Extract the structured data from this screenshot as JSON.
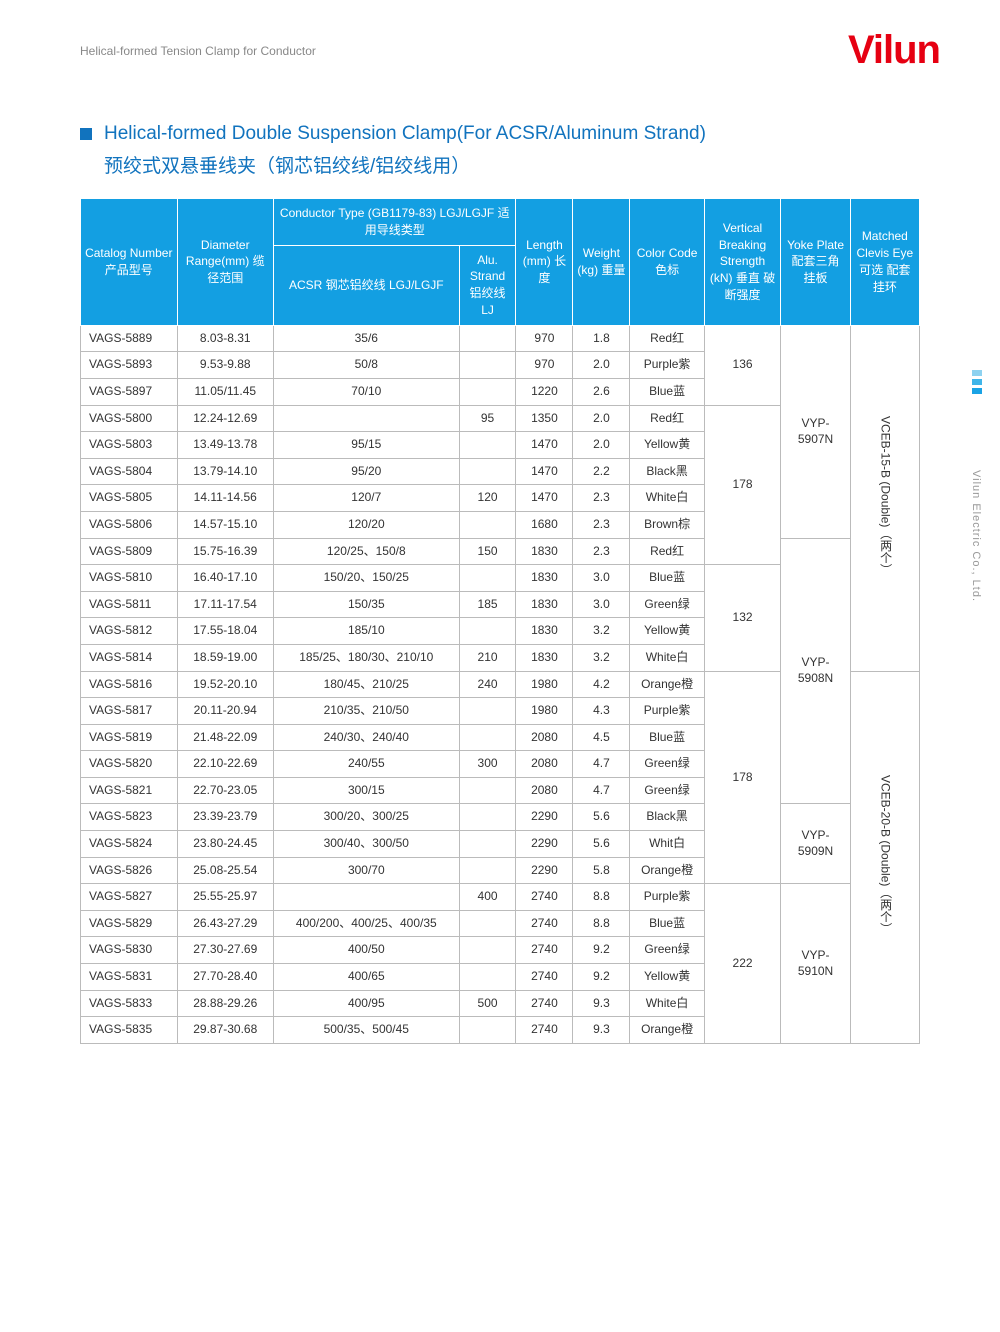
{
  "header": {
    "breadcrumb": "Helical-formed Tension Clamp for Conductor",
    "logo": "Vilun"
  },
  "side_label": "Vilun Electric Co., Ltd.",
  "title_en": "Helical-formed Double Suspension Clamp(For ACSR/Aluminum Strand)",
  "title_cn": "预绞式双悬垂线夹（钢芯铝绞线/铝绞线用）",
  "columns": {
    "catalog": "Catalog Number 产品型号",
    "diameter": "Diameter Range(mm) 缆径范围",
    "conductor_group": "Conductor Type (GB1179-83) LGJ/LGJF 适用导线类型",
    "acsr": "ACSR 钢芯铝绞线 LGJ/LGJF",
    "alu": "Alu. Strand 铝绞线 LJ",
    "length": "Length (mm) 长度",
    "weight": "Weight (kg) 重量",
    "color": "Color Code 色标",
    "breaking": "Vertical Breaking Strength (kN) 垂直 破断强度",
    "yoke": "Yoke Plate 配套三角 挂板",
    "clevis": "Matched Clevis Eye 可选 配套挂环"
  },
  "rows": [
    {
      "cat": "VAGS-5889",
      "dia": "8.03-8.31",
      "acsr": "35/6",
      "alu": "",
      "len": "970",
      "wt": "1.8",
      "color": "Red红"
    },
    {
      "cat": "VAGS-5893",
      "dia": "9.53-9.88",
      "acsr": "50/8",
      "alu": "",
      "len": "970",
      "wt": "2.0",
      "color": "Purple紫"
    },
    {
      "cat": "VAGS-5897",
      "dia": "11.05/11.45",
      "acsr": "70/10",
      "alu": "",
      "len": "1220",
      "wt": "2.6",
      "color": "Blue蓝"
    },
    {
      "cat": "VAGS-5800",
      "dia": "12.24-12.69",
      "acsr": "",
      "alu": "95",
      "len": "1350",
      "wt": "2.0",
      "color": "Red红"
    },
    {
      "cat": "VAGS-5803",
      "dia": "13.49-13.78",
      "acsr": "95/15",
      "alu": "",
      "len": "1470",
      "wt": "2.0",
      "color": "Yellow黄"
    },
    {
      "cat": "VAGS-5804",
      "dia": "13.79-14.10",
      "acsr": "95/20",
      "alu": "",
      "len": "1470",
      "wt": "2.2",
      "color": "Black黑"
    },
    {
      "cat": "VAGS-5805",
      "dia": "14.11-14.56",
      "acsr": "120/7",
      "alu": "120",
      "len": "1470",
      "wt": "2.3",
      "color": "White白"
    },
    {
      "cat": "VAGS-5806",
      "dia": "14.57-15.10",
      "acsr": "120/20",
      "alu": "",
      "len": "1680",
      "wt": "2.3",
      "color": "Brown棕"
    },
    {
      "cat": "VAGS-5809",
      "dia": "15.75-16.39",
      "acsr": "120/25、150/8",
      "alu": "150",
      "len": "1830",
      "wt": "2.3",
      "color": "Red红"
    },
    {
      "cat": "VAGS-5810",
      "dia": "16.40-17.10",
      "acsr": "150/20、150/25",
      "alu": "",
      "len": "1830",
      "wt": "3.0",
      "color": "Blue蓝"
    },
    {
      "cat": "VAGS-5811",
      "dia": "17.11-17.54",
      "acsr": "150/35",
      "alu": "185",
      "len": "1830",
      "wt": "3.0",
      "color": "Green绿"
    },
    {
      "cat": "VAGS-5812",
      "dia": "17.55-18.04",
      "acsr": "185/10",
      "alu": "",
      "len": "1830",
      "wt": "3.2",
      "color": "Yellow黄"
    },
    {
      "cat": "VAGS-5814",
      "dia": "18.59-19.00",
      "acsr": "185/25、180/30、210/10",
      "alu": "210",
      "len": "1830",
      "wt": "3.2",
      "color": "White白"
    },
    {
      "cat": "VAGS-5816",
      "dia": "19.52-20.10",
      "acsr": "180/45、210/25",
      "alu": "240",
      "len": "1980",
      "wt": "4.2",
      "color": "Orange橙"
    },
    {
      "cat": "VAGS-5817",
      "dia": "20.11-20.94",
      "acsr": "210/35、210/50",
      "alu": "",
      "len": "1980",
      "wt": "4.3",
      "color": "Purple紫"
    },
    {
      "cat": "VAGS-5819",
      "dia": "21.48-22.09",
      "acsr": "240/30、240/40",
      "alu": "",
      "len": "2080",
      "wt": "4.5",
      "color": "Blue蓝"
    },
    {
      "cat": "VAGS-5820",
      "dia": "22.10-22.69",
      "acsr": "240/55",
      "alu": "300",
      "len": "2080",
      "wt": "4.7",
      "color": "Green绿"
    },
    {
      "cat": "VAGS-5821",
      "dia": "22.70-23.05",
      "acsr": "300/15",
      "alu": "",
      "len": "2080",
      "wt": "4.7",
      "color": "Green绿"
    },
    {
      "cat": "VAGS-5823",
      "dia": "23.39-23.79",
      "acsr": "300/20、300/25",
      "alu": "",
      "len": "2290",
      "wt": "5.6",
      "color": "Black黑"
    },
    {
      "cat": "VAGS-5824",
      "dia": "23.80-24.45",
      "acsr": "300/40、300/50",
      "alu": "",
      "len": "2290",
      "wt": "5.6",
      "color": "Whit白"
    },
    {
      "cat": "VAGS-5826",
      "dia": "25.08-25.54",
      "acsr": "300/70",
      "alu": "",
      "len": "2290",
      "wt": "5.8",
      "color": "Orange橙"
    },
    {
      "cat": "VAGS-5827",
      "dia": "25.55-25.97",
      "acsr": "",
      "alu": "400",
      "len": "2740",
      "wt": "8.8",
      "color": "Purple紫"
    },
    {
      "cat": "VAGS-5829",
      "dia": "26.43-27.29",
      "acsr": "400/200、400/25、400/35",
      "alu": "",
      "len": "2740",
      "wt": "8.8",
      "color": "Blue蓝"
    },
    {
      "cat": "VAGS-5830",
      "dia": "27.30-27.69",
      "acsr": "400/50",
      "alu": "",
      "len": "2740",
      "wt": "9.2",
      "color": "Green绿"
    },
    {
      "cat": "VAGS-5831",
      "dia": "27.70-28.40",
      "acsr": "400/65",
      "alu": "",
      "len": "2740",
      "wt": "9.2",
      "color": "Yellow黄"
    },
    {
      "cat": "VAGS-5833",
      "dia": "28.88-29.26",
      "acsr": "400/95",
      "alu": "500",
      "len": "2740",
      "wt": "9.3",
      "color": "White白"
    },
    {
      "cat": "VAGS-5835",
      "dia": "29.87-30.68",
      "acsr": "500/35、500/45",
      "alu": "",
      "len": "2740",
      "wt": "9.3",
      "color": "Orange橙"
    }
  ],
  "breaking_spans": [
    {
      "start": 0,
      "span": 3,
      "val": "136"
    },
    {
      "start": 3,
      "span": 6,
      "val": "178"
    },
    {
      "start": 9,
      "span": 4,
      "val": "132"
    },
    {
      "start": 13,
      "span": 8,
      "val": "178"
    },
    {
      "start": 21,
      "span": 6,
      "val": "222"
    }
  ],
  "yoke_spans": [
    {
      "start": 0,
      "span": 8,
      "val": "VYP-5907N"
    },
    {
      "start": 8,
      "span": 10,
      "val": "VYP-5908N"
    },
    {
      "start": 18,
      "span": 3,
      "val": "VYP-5909N"
    },
    {
      "start": 21,
      "span": 6,
      "val": "VYP-5910N"
    }
  ],
  "clevis_spans": [
    {
      "start": 0,
      "span": 13,
      "val": "VCEB-15-B (Double)（两个）"
    },
    {
      "start": 13,
      "span": 14,
      "val": "VCEB-20-B (Double)（两个）"
    }
  ]
}
